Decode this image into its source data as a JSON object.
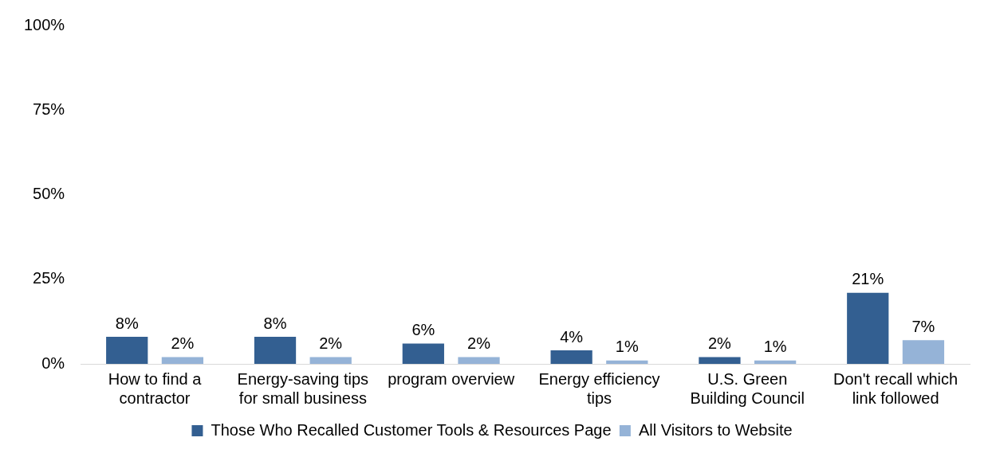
{
  "chart_data": {
    "type": "bar",
    "categories": [
      "How to find a contractor",
      "Energy-saving tips for small business",
      "program overview",
      "Energy efficiency tips",
      "U.S. Green Building Council",
      "Don't recall which link followed"
    ],
    "series": [
      {
        "name": "Those Who Recalled Customer Tools & Resources Page",
        "color": "#335f91",
        "values": [
          8,
          8,
          6,
          4,
          2,
          21
        ],
        "value_labels": [
          "8%",
          "8%",
          "6%",
          "4%",
          "2%",
          "21%"
        ]
      },
      {
        "name": "All Visitors to Website",
        "color": "#95b3d7",
        "values": [
          2,
          2,
          2,
          1,
          1,
          7
        ],
        "value_labels": [
          "2%",
          "2%",
          "2%",
          "1%",
          "1%",
          "7%"
        ]
      }
    ],
    "ylim": [
      0,
      100
    ],
    "yticks": [
      {
        "value": 0,
        "label": "0%"
      },
      {
        "value": 25,
        "label": "25%"
      },
      {
        "value": 50,
        "label": "50%"
      },
      {
        "value": 75,
        "label": "75%"
      },
      {
        "value": 100,
        "label": "100%"
      }
    ],
    "grid": false,
    "legend": "bottom"
  }
}
